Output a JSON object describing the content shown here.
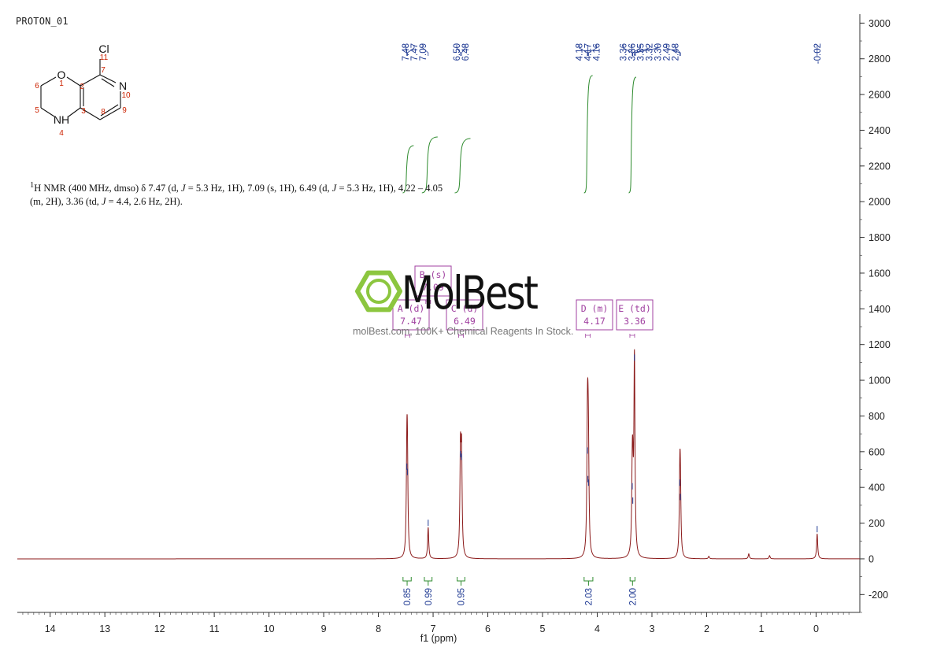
{
  "spectrum_title": "PROTON_01",
  "nmr_description": {
    "part1": "H NMR (400 MHz, dmso) δ 7.47 (d, ",
    "J": "J",
    "part2": " = 5.3 Hz, 1H), 7.09 (s, 1H), 6.49 (d, ",
    "part3": " = 5.3 Hz, 1H), 4.22 – 4.05",
    "line2a": "(m, 2H), 3.36 (td, ",
    "line2b": " = 4.4, 2.6 Hz, 2H).",
    "sup": "1"
  },
  "watermark": {
    "brand": "MolBest",
    "tagline": "molBest.com, 100K+ Chemical Reagents In Stock."
  },
  "structure": {
    "atoms": [
      "Cl",
      "O",
      "N",
      "NH"
    ],
    "numbers": [
      "11",
      "7",
      "1",
      "6",
      "2",
      "10",
      "5",
      "3",
      "9",
      "8",
      "4"
    ]
  },
  "colors": {
    "spectrum": "#8b1a1a",
    "peak_labels": "#1f3a93",
    "integrals": "#2e8b2e",
    "multiplet_boxes": "#a040a0",
    "atom_numbers": "#cc2200",
    "axis": "#333333"
  },
  "chart_data": {
    "type": "line",
    "xlabel": "f1 (ppm)",
    "ylabel": "",
    "xlim": [
      14.6,
      -0.8
    ],
    "ylim": [
      -300,
      3050
    ],
    "x_ticks": [
      14,
      13,
      12,
      11,
      10,
      9,
      8,
      7,
      6,
      5,
      4,
      3,
      2,
      1,
      0
    ],
    "y_ticks": [
      3000,
      2800,
      2600,
      2400,
      2200,
      2000,
      1800,
      1600,
      1400,
      1200,
      1000,
      800,
      600,
      400,
      200,
      0,
      -200
    ],
    "grid": false,
    "peaks": [
      {
        "ppm": 7.48,
        "height": 490
      },
      {
        "ppm": 7.47,
        "height": 460
      },
      {
        "ppm": 7.09,
        "height": 175
      },
      {
        "ppm": 6.5,
        "height": 560
      },
      {
        "ppm": 6.48,
        "height": 545
      },
      {
        "ppm": 4.18,
        "height": 580
      },
      {
        "ppm": 4.17,
        "height": 420
      },
      {
        "ppm": 4.16,
        "height": 400
      },
      {
        "ppm": 3.36,
        "height": 380
      },
      {
        "ppm": 3.35,
        "height": 300
      },
      {
        "ppm": 3.32,
        "height": 1100
      },
      {
        "ppm": 2.49,
        "height": 400
      },
      {
        "ppm": 2.48,
        "height": 320
      },
      {
        "ppm": -0.02,
        "height": 140
      },
      {
        "ppm": 1.96,
        "height": 14
      },
      {
        "ppm": 1.23,
        "height": 28
      },
      {
        "ppm": 0.85,
        "height": 18
      }
    ],
    "peak_labels": [
      "7.48",
      "7.47",
      "7.09",
      "6.50",
      "6.48",
      "4.18",
      "4.17",
      "4.16",
      "3.36",
      "3.36",
      "3.35",
      "3.32",
      "3.30",
      "2.49",
      "2.48",
      "-0.02"
    ],
    "peak_label_groups": [
      {
        "labels": [
          "7.48",
          "7.47",
          "7.09"
        ],
        "ppm": [
          7.48,
          7.47,
          7.09
        ]
      },
      {
        "labels": [
          "6.50",
          "6.48"
        ],
        "ppm": [
          6.5,
          6.48
        ]
      },
      {
        "labels": [
          "4.18",
          "4.17",
          "4.16"
        ],
        "ppm": [
          4.18,
          4.17,
          4.16
        ]
      },
      {
        "labels": [
          "3.36",
          "3.36",
          "3.35",
          "3.32",
          "3.30",
          "2.49",
          "2.48"
        ],
        "ppm": [
          3.36,
          3.36,
          3.35,
          3.32,
          3.3,
          2.49,
          2.48
        ]
      },
      {
        "labels": [
          "-0.02"
        ],
        "ppm": [
          -0.02
        ]
      }
    ],
    "integrals": [
      {
        "from": 7.55,
        "to": 7.4,
        "value": "0.85"
      },
      {
        "from": 7.16,
        "to": 7.02,
        "value": "0.99"
      },
      {
        "from": 6.56,
        "to": 6.42,
        "value": "0.95"
      },
      {
        "from": 4.24,
        "to": 4.08,
        "value": "2.03"
      },
      {
        "from": 3.4,
        "to": 3.31,
        "value": "2.00"
      }
    ],
    "multiplets": [
      {
        "label": "A (d)",
        "shift": "7.47",
        "ppm": 7.47
      },
      {
        "label": "B (s)",
        "shift": "7.09",
        "ppm": 7.09
      },
      {
        "label": "C (d)",
        "shift": "6.49",
        "ppm": 6.49
      },
      {
        "label": "D (m)",
        "shift": "4.17",
        "ppm": 4.17
      },
      {
        "label": "E (td)",
        "shift": "3.36",
        "ppm": 3.36
      }
    ]
  }
}
